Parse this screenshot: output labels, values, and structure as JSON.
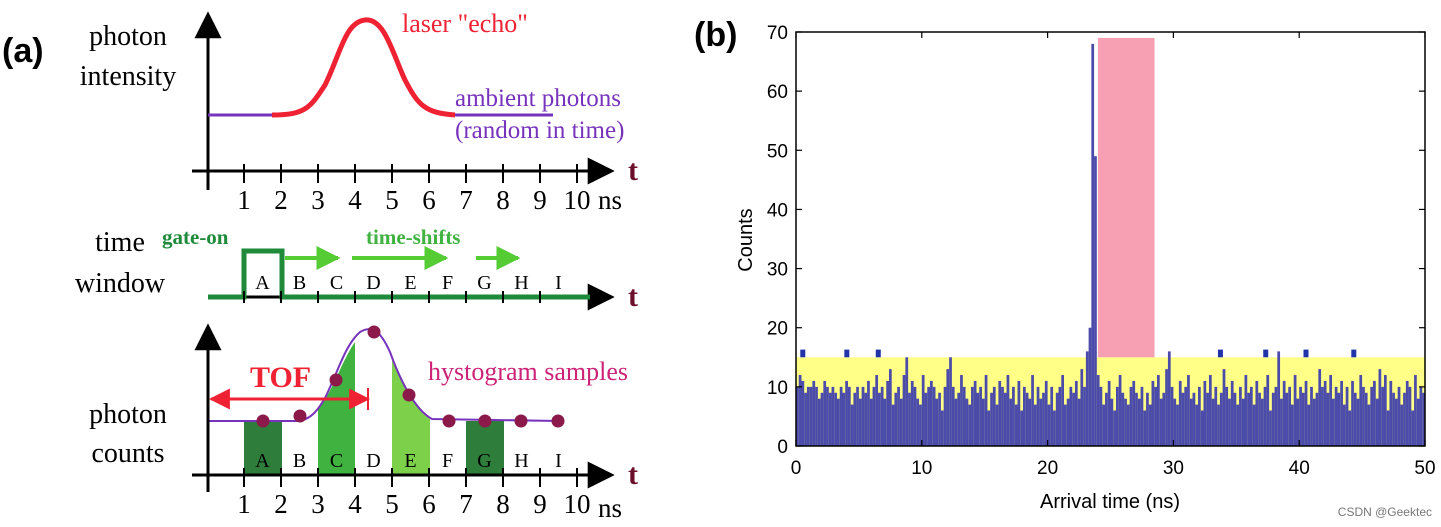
{
  "panel_a": {
    "label": "(a)",
    "axis_t": "t",
    "top": {
      "ylabel_line1": "photon",
      "ylabel_line2": "intensity",
      "echo_label": "laser \"echo\"",
      "ambient_line1": "ambient photons",
      "ambient_line2": "(random in time)",
      "ticks": [
        "1",
        "2",
        "3",
        "4",
        "5",
        "6",
        "7",
        "8",
        "9",
        "10"
      ],
      "unit": "ns"
    },
    "middle": {
      "ylabel_line1": "time",
      "ylabel_line2": "window",
      "gate_on": "gate-on",
      "time_shifts": "time-shifts",
      "bins": [
        "A",
        "B",
        "C",
        "D",
        "E",
        "F",
        "G",
        "H",
        "I"
      ]
    },
    "bottom": {
      "ylabel_line1": "photon",
      "ylabel_line2": "counts",
      "tof": "TOF",
      "hist_label": "hystogram samples",
      "bins": [
        "A",
        "B",
        "C",
        "D",
        "E",
        "F",
        "G",
        "H",
        "I"
      ],
      "ticks": [
        "1",
        "2",
        "3",
        "4",
        "5",
        "6",
        "7",
        "8",
        "9",
        "10"
      ],
      "unit": "ns"
    },
    "colors": {
      "echo": "#ee2233",
      "ambient": "#7733bb",
      "gate": "#1e8a3a",
      "shift_arrow": "#55cc33",
      "dark_green": "#2e7d3a",
      "mid_green": "#3fb23f",
      "light_green": "#7cd04a",
      "dot": "#8b1a4a",
      "hist_text": "#cc2277",
      "tick_t": "#6b0f2a"
    }
  },
  "panel_b": {
    "label": "(b)",
    "watermark": "CSDN @Geektec",
    "chart_data": {
      "type": "bar",
      "xlabel": "Arrival time (ns)",
      "ylabel": "Counts",
      "xlim": [
        0,
        50
      ],
      "ylim": [
        0,
        70
      ],
      "xticks": [
        0,
        10,
        20,
        30,
        40,
        50
      ],
      "yticks": [
        0,
        10,
        20,
        30,
        40,
        50,
        60,
        70
      ],
      "bin_width": 0.5,
      "bin_start": 0,
      "values": [
        10,
        12,
        11,
        9,
        10,
        10,
        11,
        10,
        8,
        9,
        11,
        10,
        9,
        10,
        9,
        8,
        10,
        9,
        11,
        10,
        7,
        9,
        10,
        8,
        10,
        9,
        11,
        8,
        10,
        12,
        9,
        10,
        8,
        11,
        13,
        7,
        9,
        10,
        8,
        12,
        15,
        9,
        11,
        10,
        8,
        7,
        12,
        9,
        10,
        11,
        10,
        8,
        9,
        6,
        10,
        13,
        15,
        10,
        8,
        9,
        12,
        10,
        8,
        7,
        10,
        11,
        9,
        10,
        8,
        12,
        6,
        9,
        10,
        7,
        11,
        10,
        9,
        12,
        8,
        10,
        7,
        11,
        6,
        10,
        9,
        8,
        12,
        7,
        10,
        8,
        9,
        11,
        7,
        10,
        6,
        9,
        10,
        12,
        7,
        8,
        10,
        9,
        11,
        8,
        13,
        10,
        16,
        20,
        68,
        49,
        12,
        10,
        7,
        9,
        11,
        8,
        6,
        10,
        12,
        9,
        8,
        7,
        10,
        11,
        9,
        8,
        10,
        6,
        9,
        7,
        11,
        10,
        12,
        8,
        9,
        13,
        16,
        10,
        8,
        7,
        11,
        9,
        10,
        12,
        8,
        9,
        7,
        10,
        6,
        11,
        9,
        12,
        8,
        10,
        7,
        9,
        13,
        10,
        8,
        11,
        9,
        7,
        10,
        8,
        12,
        9,
        10,
        7,
        11,
        9,
        8,
        10,
        12,
        6,
        9,
        10,
        16,
        8,
        11,
        9,
        10,
        7,
        12,
        8,
        10,
        9,
        11,
        7,
        10,
        8,
        9,
        13,
        10,
        11,
        9,
        12,
        8,
        10,
        9,
        11,
        7,
        10,
        6,
        11,
        9,
        8,
        12,
        10,
        9,
        7,
        10,
        11,
        8,
        13,
        10,
        12,
        6,
        11,
        9,
        8,
        10,
        7,
        9,
        11,
        10,
        6,
        12,
        8,
        10,
        9
      ],
      "ambient_band": [
        0,
        15
      ],
      "signal_window": [
        24.0,
        28.5
      ],
      "peak_markers_x": [
        0.5,
        4.0,
        6.5,
        33.7,
        37.3,
        40.5,
        44.3
      ],
      "colors": {
        "bar": "#4b4baa",
        "ambient_band": "#ffff88",
        "signal_window": "#f7a0b3",
        "peak": "#2233aa"
      }
    }
  }
}
